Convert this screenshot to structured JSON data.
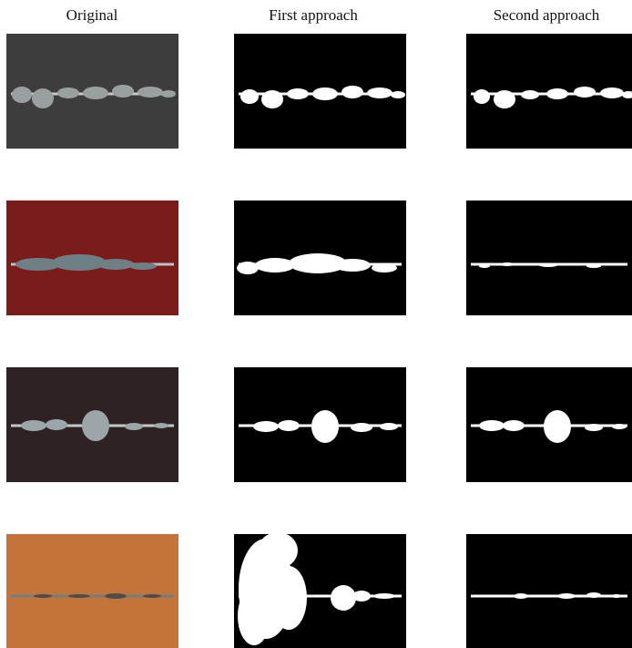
{
  "columns": [
    "Original",
    "First approach",
    "Second approach"
  ]
}
